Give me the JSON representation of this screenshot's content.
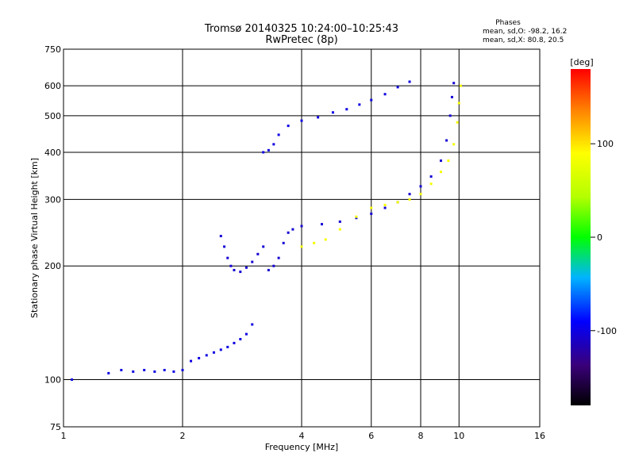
{
  "chart_data": {
    "type": "scatter",
    "title": "Tromsø 20140325 10:24:00–10:25:43",
    "subtitle": "RwPretec (8p)",
    "stats": {
      "header": "Phases",
      "line1": "mean, sd,O: -98.2, 16.2",
      "line2": "mean, sd,X:  80.8, 20.5"
    },
    "xlabel": "Frequency [MHz]",
    "ylabel": "Stationary phase Virtual Height [km]",
    "x_scale": "log",
    "y_scale": "log",
    "xlim": [
      1,
      16
    ],
    "ylim": [
      75,
      750
    ],
    "x_ticks": [
      1,
      2,
      4,
      6,
      8,
      10,
      16
    ],
    "y_ticks": [
      75,
      100,
      200,
      300,
      400,
      500,
      600,
      750
    ],
    "x_gridlines": [
      2,
      4,
      6,
      8,
      10
    ],
    "y_gridlines": [
      100,
      200,
      300,
      400,
      500,
      600
    ],
    "grid": true,
    "colorbar": {
      "label": "[deg]",
      "ticks": [
        100,
        0,
        -100
      ],
      "range": [
        -180,
        180
      ]
    },
    "series": [
      {
        "name": "",
        "color_hint": "low frequency E-region trace (~-100 deg)",
        "points": [
          [
            1.05,
            100
          ],
          [
            1.3,
            104
          ],
          [
            1.4,
            106
          ],
          [
            1.5,
            105
          ],
          [
            1.6,
            106
          ],
          [
            1.7,
            105
          ],
          [
            1.8,
            106
          ],
          [
            1.9,
            105
          ],
          [
            2.0,
            106
          ],
          [
            2.1,
            112
          ],
          [
            2.2,
            114
          ],
          [
            2.3,
            116
          ],
          [
            2.4,
            118
          ],
          [
            2.5,
            120
          ],
          [
            2.6,
            122
          ],
          [
            2.7,
            125
          ],
          [
            2.8,
            128
          ],
          [
            2.9,
            132
          ],
          [
            3.0,
            140
          ]
        ],
        "phase": -100
      },
      {
        "name": "",
        "color_hint": "F1 cusp trace (~-110 deg)",
        "points": [
          [
            2.5,
            240
          ],
          [
            2.55,
            225
          ],
          [
            2.6,
            210
          ],
          [
            2.65,
            200
          ],
          [
            2.7,
            195
          ],
          [
            2.8,
            193
          ],
          [
            2.9,
            198
          ],
          [
            3.0,
            205
          ],
          [
            3.1,
            215
          ],
          [
            3.2,
            225
          ],
          [
            3.3,
            195
          ],
          [
            3.4,
            200
          ],
          [
            3.5,
            210
          ],
          [
            3.6,
            230
          ],
          [
            3.7,
            245
          ],
          [
            3.8,
            250
          ],
          [
            4.0,
            255
          ],
          [
            4.5,
            258
          ],
          [
            5.0,
            262
          ],
          [
            5.5,
            268
          ],
          [
            6.0,
            275
          ],
          [
            6.5,
            285
          ],
          [
            7.0,
            295
          ],
          [
            7.5,
            310
          ],
          [
            8.0,
            325
          ],
          [
            8.5,
            345
          ],
          [
            9.0,
            380
          ],
          [
            9.3,
            430
          ],
          [
            9.5,
            500
          ],
          [
            9.6,
            560
          ],
          [
            9.7,
            610
          ]
        ],
        "phase": -105
      },
      {
        "name": "",
        "color_hint": "upper F2 O-trace (~-100 deg)",
        "points": [
          [
            3.2,
            400
          ],
          [
            3.3,
            405
          ],
          [
            3.4,
            420
          ],
          [
            3.5,
            445
          ],
          [
            3.7,
            470
          ],
          [
            4.0,
            485
          ],
          [
            4.4,
            495
          ],
          [
            4.8,
            510
          ],
          [
            5.2,
            520
          ],
          [
            5.6,
            535
          ],
          [
            6.0,
            550
          ],
          [
            6.5,
            570
          ],
          [
            7.0,
            595
          ],
          [
            7.5,
            615
          ]
        ],
        "phase": -100
      },
      {
        "name": "",
        "color_hint": "X-mode trace (~+85 deg)",
        "points": [
          [
            4.0,
            225
          ],
          [
            4.3,
            230
          ],
          [
            4.6,
            235
          ],
          [
            5.0,
            250
          ],
          [
            5.5,
            270
          ],
          [
            6.0,
            285
          ],
          [
            6.5,
            290
          ],
          [
            7.0,
            295
          ],
          [
            7.5,
            300
          ],
          [
            8.0,
            310
          ],
          [
            8.5,
            330
          ],
          [
            9.0,
            355
          ],
          [
            9.4,
            380
          ],
          [
            9.7,
            420
          ],
          [
            9.9,
            480
          ],
          [
            10.0,
            540
          ],
          [
            10.1,
            600
          ]
        ],
        "phase": 85
      }
    ]
  }
}
